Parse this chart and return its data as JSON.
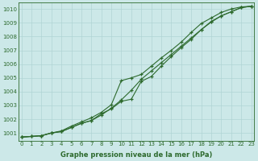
{
  "x": [
    0,
    1,
    2,
    3,
    4,
    5,
    6,
    7,
    8,
    9,
    10,
    11,
    12,
    13,
    14,
    15,
    16,
    17,
    18,
    19,
    20,
    21,
    22,
    23
  ],
  "line1": [
    1000.7,
    1000.75,
    1000.8,
    1001.0,
    1001.1,
    1001.4,
    1001.7,
    1001.9,
    1002.3,
    1002.8,
    1003.4,
    1004.1,
    1004.9,
    1005.5,
    1006.1,
    1006.7,
    1007.3,
    1007.9,
    1008.5,
    1009.1,
    1009.5,
    1009.8,
    1010.1,
    1010.2
  ],
  "line2": [
    1000.7,
    1000.75,
    1000.8,
    1001.0,
    1001.15,
    1001.5,
    1001.8,
    1002.1,
    1002.5,
    1003.05,
    1004.8,
    1005.0,
    1005.25,
    1005.85,
    1006.45,
    1007.0,
    1007.6,
    1008.3,
    1008.95,
    1009.35,
    1009.75,
    1010.0,
    1010.15,
    1010.2
  ],
  "line3": [
    1000.7,
    1000.75,
    1000.8,
    1001.0,
    1001.1,
    1001.4,
    1001.7,
    1001.9,
    1002.4,
    1002.75,
    1003.3,
    1003.45,
    1004.75,
    1005.1,
    1005.85,
    1006.55,
    1007.2,
    1007.8,
    1008.5,
    1009.05,
    1009.5,
    1009.8,
    1010.1,
    1010.2
  ],
  "line_color": "#2d6a2d",
  "bg_color": "#cce8e8",
  "grid_color": "#b0d4d4",
  "ylabel_ticks": [
    1001,
    1002,
    1003,
    1004,
    1005,
    1006,
    1007,
    1008,
    1009,
    1010
  ],
  "xlabel_ticks": [
    0,
    1,
    2,
    3,
    4,
    5,
    6,
    7,
    8,
    9,
    10,
    11,
    12,
    13,
    14,
    15,
    16,
    17,
    18,
    19,
    20,
    21,
    22,
    23
  ],
  "ylim": [
    1000.45,
    1010.45
  ],
  "xlim": [
    -0.3,
    23.3
  ],
  "xlabel": "Graphe pression niveau de la mer (hPa)",
  "marker": "+",
  "markersize": 3.5,
  "linewidth": 0.8,
  "tick_fontsize": 5.0,
  "xlabel_fontsize": 6.0
}
